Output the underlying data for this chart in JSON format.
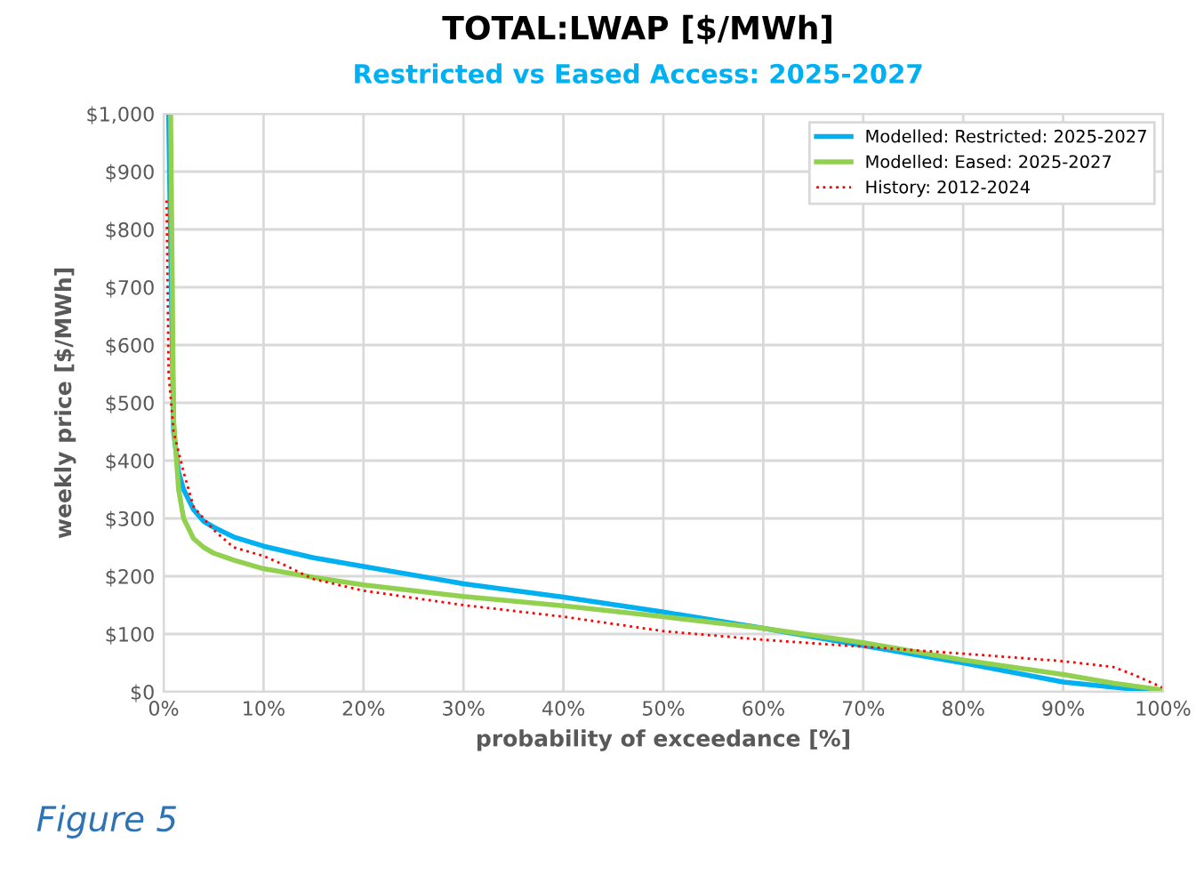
{
  "chart_data": {
    "type": "line",
    "title": "TOTAL:LWAP [$/MWh]",
    "subtitle": "Restricted vs Eased Access: 2025-2027",
    "xlabel": "probability of exceedance [%]",
    "ylabel": "weekly price [$/MWh]",
    "annotations": [
      "Figure 5"
    ],
    "xlim": [
      0,
      100
    ],
    "xticks": [
      {
        "value": 0,
        "label": "0%"
      },
      {
        "value": 10,
        "label": "10%"
      },
      {
        "value": 20,
        "label": "20%"
      },
      {
        "value": 30,
        "label": "30%"
      },
      {
        "value": 40,
        "label": "40%"
      },
      {
        "value": 50,
        "label": "50%"
      },
      {
        "value": 60,
        "label": "60%"
      },
      {
        "value": 70,
        "label": "70%"
      },
      {
        "value": 80,
        "label": "80%"
      },
      {
        "value": 90,
        "label": "90%"
      },
      {
        "value": 100,
        "label": "100%"
      }
    ],
    "ylim": [
      0,
      1000
    ],
    "yticks": [
      {
        "value": 0,
        "label": "$0"
      },
      {
        "value": 100,
        "label": "$100"
      },
      {
        "value": 200,
        "label": "$200"
      },
      {
        "value": 300,
        "label": "$300"
      },
      {
        "value": 400,
        "label": "$400"
      },
      {
        "value": 500,
        "label": "$500"
      },
      {
        "value": 600,
        "label": "$600"
      },
      {
        "value": 700,
        "label": "$700"
      },
      {
        "value": 800,
        "label": "$800"
      },
      {
        "value": 900,
        "label": "$900"
      },
      {
        "value": 1000,
        "label": "$1,000"
      }
    ],
    "grid": true,
    "legend": "top right",
    "marker": "none",
    "series": [
      {
        "name": "Modelled: Restricted: 2025-2027",
        "color": "#00b0f0",
        "line_style": "solid",
        "x": [
          0.5,
          1,
          1.5,
          2,
          3,
          4,
          5,
          7,
          10,
          15,
          20,
          30,
          40,
          50,
          60,
          70,
          80,
          90,
          95,
          100
        ],
        "values": [
          1000,
          450,
          380,
          350,
          315,
          295,
          285,
          268,
          252,
          232,
          217,
          187,
          164,
          138,
          110,
          80,
          50,
          17,
          8,
          0
        ]
      },
      {
        "name": "Modelled: Eased: 2025-2027",
        "color": "#92d050",
        "line_style": "solid",
        "x": [
          0.7,
          1,
          1.5,
          2,
          3,
          4,
          5,
          7,
          10,
          15,
          20,
          30,
          40,
          50,
          60,
          70,
          80,
          90,
          95,
          100
        ],
        "values": [
          1000,
          470,
          350,
          300,
          265,
          250,
          240,
          228,
          213,
          198,
          185,
          165,
          149,
          130,
          110,
          85,
          55,
          30,
          15,
          3
        ]
      },
      {
        "name": "History: 2012-2024",
        "color": "#ff0000",
        "line_style": "dotted",
        "x": [
          0.3,
          0.5,
          1,
          2,
          3,
          5,
          7,
          10,
          12,
          15,
          20,
          30,
          40,
          50,
          60,
          70,
          80,
          90,
          95,
          97,
          100
        ],
        "values": [
          850,
          550,
          450,
          380,
          320,
          280,
          250,
          235,
          220,
          195,
          175,
          150,
          130,
          105,
          90,
          78,
          66,
          53,
          43,
          30,
          7
        ]
      }
    ]
  }
}
